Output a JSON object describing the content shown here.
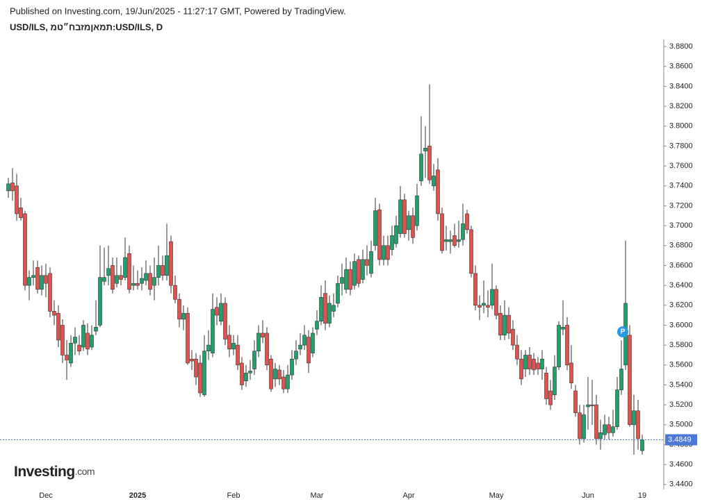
{
  "chart_data": {
    "type": "candlestick",
    "title": "Published on Investing.com, 19/Jun/2025 - 11:27:17 GMT, Powered by TradingView.",
    "subtitle": "USD/ILS, תמאןמזבח״טמ:USD/ILS, D",
    "annotation": "P",
    "logo": "Investing",
    "logo_suffix": ".com",
    "up_color": "#22a06b",
    "down_color": "#e0524f",
    "last_color": "#4a77d8",
    "categories": [
      null,
      null,
      null,
      null,
      null,
      null,
      null,
      null,
      null,
      "Dec",
      null,
      null,
      null,
      null,
      null,
      null,
      null,
      null,
      null,
      null,
      null,
      null,
      null,
      null,
      null,
      null,
      null,
      null,
      null,
      null,
      null,
      "2025",
      null,
      null,
      null,
      null,
      null,
      null,
      null,
      null,
      null,
      null,
      null,
      null,
      null,
      null,
      null,
      null,
      null,
      null,
      null,
      null,
      null,
      null,
      "Feb",
      null,
      null,
      null,
      null,
      null,
      null,
      null,
      null,
      null,
      null,
      null,
      null,
      null,
      null,
      null,
      null,
      null,
      null,
      null,
      "Mar",
      null,
      null,
      null,
      null,
      null,
      null,
      null,
      null,
      null,
      null,
      null,
      null,
      null,
      null,
      null,
      null,
      null,
      null,
      null,
      null,
      null,
      "Apr",
      null,
      null,
      null,
      null,
      null,
      null,
      null,
      null,
      null,
      null,
      null,
      null,
      null,
      null,
      null,
      null,
      null,
      null,
      null,
      null,
      "May",
      null,
      null,
      null,
      null,
      null,
      null,
      null,
      null,
      null,
      null,
      null,
      null,
      null,
      null,
      null,
      null,
      null,
      null,
      null,
      null,
      null,
      "Jun",
      null,
      null,
      null,
      null,
      null,
      null,
      null,
      null,
      null,
      null,
      null,
      null,
      "19"
    ],
    "open": [
      3.735,
      3.743,
      3.74,
      3.718,
      3.712,
      3.64,
      3.648,
      3.658,
      3.636,
      3.65,
      3.652,
      3.614,
      3.612,
      3.6,
      3.57,
      3.562,
      3.582,
      3.58,
      3.578,
      3.592,
      3.578,
      3.594,
      3.6,
      3.644,
      3.65,
      3.66,
      3.642,
      3.65,
      3.648,
      3.672,
      3.64,
      3.642,
      3.642,
      3.645,
      3.652,
      3.64,
      3.648,
      3.66,
      3.65,
      3.684,
      3.64,
      3.626,
      3.606,
      3.612,
      3.566,
      3.566,
      3.562,
      3.53,
      3.574,
      3.572,
      3.618,
      3.604,
      3.622,
      3.59,
      3.576,
      3.58,
      3.562,
      3.544,
      3.552,
      3.556,
      3.574,
      3.592,
      3.592,
      3.566,
      3.546,
      3.555,
      3.548,
      3.536,
      3.55,
      3.566,
      3.576,
      3.58,
      3.588,
      3.572,
      3.596,
      3.604,
      3.632,
      3.602,
      3.614,
      3.622,
      3.642,
      3.636,
      3.656,
      3.64,
      3.666,
      3.646,
      3.666,
      3.652,
      3.68,
      3.716,
      3.666,
      3.68,
      3.676,
      3.682,
      3.692,
      3.726,
      3.696,
      3.71,
      3.7,
      3.745,
      3.775,
      3.78,
      3.74,
      3.756,
      3.712,
      3.684,
      3.684,
      3.69,
      3.684,
      3.686,
      3.712,
      3.696,
      3.652,
      3.62,
      3.62,
      3.62,
      3.62,
      3.636,
      3.612,
      3.59,
      3.61,
      3.596,
      3.58,
      3.566,
      3.556,
      3.57,
      3.566,
      3.562,
      3.556,
      3.552,
      3.534,
      3.53,
      3.558,
      3.596,
      3.6,
      3.562,
      3.534,
      3.512,
      3.486,
      3.518,
      3.52,
      3.52,
      3.486,
      3.49,
      3.5,
      3.492,
      3.498,
      3.535,
      3.56,
      3.59,
      3.5,
      3.514,
      3.474
    ],
    "high": [
      3.748,
      3.758,
      3.752,
      3.728,
      3.715,
      3.655,
      3.665,
      3.665,
      3.66,
      3.662,
      3.658,
      3.625,
      3.62,
      3.606,
      3.585,
      3.59,
      3.598,
      3.59,
      3.605,
      3.602,
      3.6,
      3.625,
      3.68,
      3.678,
      3.68,
      3.668,
      3.668,
      3.66,
      3.688,
      3.68,
      3.66,
      3.655,
      3.658,
      3.665,
      3.66,
      3.668,
      3.68,
      3.67,
      3.702,
      3.69,
      3.65,
      3.632,
      3.62,
      3.618,
      3.575,
      3.572,
      3.57,
      3.59,
      3.595,
      3.632,
      3.628,
      3.632,
      3.628,
      3.6,
      3.59,
      3.59,
      3.568,
      3.56,
      3.565,
      3.585,
      3.6,
      3.605,
      3.598,
      3.57,
      3.562,
      3.56,
      3.555,
      3.56,
      3.575,
      3.585,
      3.592,
      3.6,
      3.595,
      3.598,
      3.615,
      3.64,
      3.645,
      3.63,
      3.632,
      3.65,
      3.662,
      3.668,
      3.664,
      3.672,
      3.67,
      3.676,
      3.68,
      3.685,
      3.728,
      3.722,
      3.69,
      3.69,
      3.7,
      3.71,
      3.74,
      3.732,
      3.715,
      3.718,
      3.742,
      3.81,
      3.8,
      3.842,
      3.762,
      3.768,
      3.718,
      3.7,
      3.695,
      3.702,
      3.705,
      3.722,
      3.716,
      3.7,
      3.66,
      3.63,
      3.645,
      3.635,
      3.662,
      3.64,
      3.62,
      3.625,
      3.618,
      3.605,
      3.59,
      3.575,
      3.575,
      3.578,
      3.572,
      3.568,
      3.575,
      3.558,
      3.545,
      3.57,
      3.604,
      3.625,
      3.608,
      3.58,
      3.54,
      3.52,
      3.52,
      3.548,
      3.545,
      3.53,
      3.505,
      3.51,
      3.508,
      3.515,
      3.548,
      3.585,
      3.685,
      3.6,
      3.53,
      3.525,
      3.49
    ],
    "low": [
      3.728,
      3.725,
      3.705,
      3.705,
      3.635,
      3.625,
      3.64,
      3.632,
      3.63,
      3.628,
      3.608,
      3.6,
      3.578,
      3.562,
      3.545,
      3.558,
      3.57,
      3.57,
      3.574,
      3.57,
      3.575,
      3.59,
      3.598,
      3.64,
      3.64,
      3.632,
      3.638,
      3.64,
      3.645,
      3.632,
      3.635,
      3.636,
      3.635,
      3.64,
      3.63,
      3.625,
      3.64,
      3.645,
      3.645,
      3.632,
      3.622,
      3.598,
      3.595,
      3.56,
      3.555,
      3.54,
      3.528,
      3.528,
      3.565,
      3.568,
      3.6,
      3.6,
      3.58,
      3.568,
      3.57,
      3.555,
      3.535,
      3.538,
      3.545,
      3.55,
      3.568,
      3.582,
      3.555,
      3.533,
      3.538,
      3.54,
      3.532,
      3.532,
      3.545,
      3.56,
      3.57,
      3.575,
      3.552,
      3.568,
      3.59,
      3.6,
      3.595,
      3.598,
      3.608,
      3.618,
      3.63,
      3.632,
      3.63,
      3.636,
      3.638,
      3.642,
      3.65,
      3.648,
      3.675,
      3.66,
      3.66,
      3.66,
      3.67,
      3.678,
      3.688,
      3.688,
      3.685,
      3.682,
      3.695,
      3.74,
      3.748,
      3.742,
      3.735,
      3.705,
      3.672,
      3.675,
      3.672,
      3.678,
      3.678,
      3.68,
      3.692,
      3.648,
      3.615,
      3.605,
      3.612,
      3.608,
      3.616,
      3.606,
      3.585,
      3.585,
      3.586,
      3.575,
      3.56,
      3.54,
      3.548,
      3.55,
      3.55,
      3.55,
      3.545,
      3.52,
      3.515,
      3.525,
      3.555,
      3.59,
      3.555,
      3.536,
      3.508,
      3.48,
      3.482,
      3.495,
      3.5,
      3.48,
      3.475,
      3.485,
      3.485,
      3.488,
      3.495,
      3.53,
      3.555,
      3.498,
      3.47,
      3.475,
      3.47
    ],
    "close": [
      3.742,
      3.735,
      3.712,
      3.708,
      3.64,
      3.648,
      3.65,
      3.636,
      3.65,
      3.642,
      3.614,
      3.61,
      3.585,
      3.57,
      3.565,
      3.582,
      3.588,
      3.574,
      3.6,
      3.576,
      3.59,
      3.598,
      3.648,
      3.648,
      3.657,
      3.636,
      3.65,
      3.646,
      3.668,
      3.636,
      3.642,
      3.64,
      3.647,
      3.652,
      3.636,
      3.648,
      3.66,
      3.65,
      3.67,
      3.64,
      3.626,
      3.606,
      3.612,
      3.562,
      3.564,
      3.548,
      3.532,
      3.574,
      3.58,
      3.616,
      3.61,
      3.622,
      3.586,
      3.576,
      3.582,
      3.56,
      3.54,
      3.552,
      3.554,
      3.574,
      3.592,
      3.588,
      3.56,
      3.536,
      3.556,
      3.546,
      3.536,
      3.55,
      3.566,
      3.574,
      3.58,
      3.59,
      3.562,
      3.592,
      3.604,
      3.628,
      3.602,
      3.622,
      3.62,
      3.642,
      3.648,
      3.656,
      3.636,
      3.664,
      3.642,
      3.666,
      3.66,
      3.674,
      3.715,
      3.666,
      3.68,
      3.666,
      3.69,
      3.7,
      3.726,
      3.692,
      3.71,
      3.688,
      3.73,
      3.772,
      3.778,
      3.746,
      3.75,
      3.712,
      3.675,
      3.686,
      3.686,
      3.68,
      3.686,
      3.702,
      3.696,
      3.652,
      3.62,
      3.618,
      3.622,
      3.618,
      3.636,
      3.61,
      3.59,
      3.61,
      3.592,
      3.58,
      3.566,
      3.546,
      3.57,
      3.556,
      3.555,
      3.556,
      3.566,
      3.526,
      3.52,
      3.558,
      3.6,
      3.598,
      3.56,
      3.542,
      3.512,
      3.486,
      3.51,
      3.52,
      3.519,
      3.486,
      3.492,
      3.5,
      3.492,
      3.498,
      3.535,
      3.556,
      3.622,
      3.5,
      3.514,
      3.486,
      3.4849
    ],
    "ylim": [
      3.435,
      3.887
    ],
    "yticks": [
      {
        "value": 3.44,
        "label": "3.4400"
      },
      {
        "value": 3.46,
        "label": "3.4600"
      },
      {
        "value": 3.48,
        "label": "3.4800"
      },
      {
        "value": 3.5,
        "label": "3.5000"
      },
      {
        "value": 3.52,
        "label": "3.5200"
      },
      {
        "value": 3.54,
        "label": "3.5400"
      },
      {
        "value": 3.56,
        "label": "3.5600"
      },
      {
        "value": 3.58,
        "label": "3.5800"
      },
      {
        "value": 3.6,
        "label": "3.6000"
      },
      {
        "value": 3.62,
        "label": "3.6200"
      },
      {
        "value": 3.64,
        "label": "3.6400"
      },
      {
        "value": 3.66,
        "label": "3.6600"
      },
      {
        "value": 3.68,
        "label": "3.6800"
      },
      {
        "value": 3.7,
        "label": "3.7000"
      },
      {
        "value": 3.72,
        "label": "3.7200"
      },
      {
        "value": 3.74,
        "label": "3.7400"
      },
      {
        "value": 3.76,
        "label": "3.7600"
      },
      {
        "value": 3.78,
        "label": "3.7800"
      },
      {
        "value": 3.8,
        "label": "3.8000"
      },
      {
        "value": 3.82,
        "label": "3.8200"
      },
      {
        "value": 3.84,
        "label": "3.8400"
      },
      {
        "value": 3.86,
        "label": "3.8600"
      },
      {
        "value": 3.88,
        "label": "3.8800"
      }
    ],
    "grid": false
  }
}
